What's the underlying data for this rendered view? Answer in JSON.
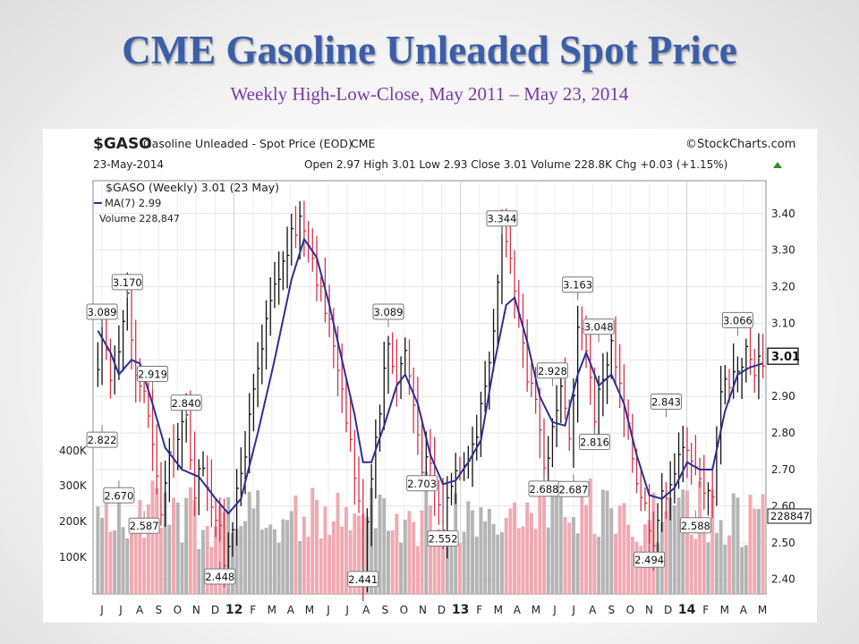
{
  "slide": {
    "title": "CME Gasoline Unleaded Spot Price",
    "subtitle": "Weekly High-Low-Close, May 2011 – May 23, 2014"
  },
  "chart_header": {
    "symbol": "$GASO",
    "name": "Gasoline Unleaded - Spot Price (EOD)",
    "exchange": "CME",
    "brand": "©StockCharts.com",
    "date": "23-May-2014",
    "quote": "Open 2.97  High 3.01  Low 2.93  Close 3.01  Volume 228.8K  Chg +0.03 (+1.15%)",
    "legend_price": "$GASO (Weekly) 3.01 (23 May)",
    "legend_ma": "MA(7) 2.99",
    "legend_volume": "Volume 228,847"
  },
  "chart_data": {
    "type": "line",
    "title": "$GASO Gasoline Unleaded - Spot Price (EOD)",
    "price_axis": {
      "ticks": [
        "3.40",
        "3.30",
        "3.20",
        "3.10",
        "3.00",
        "2.90",
        "2.80",
        "2.70",
        "2.60",
        "2.50",
        "2.40"
      ],
      "range": [
        2.36,
        3.49
      ],
      "last": "3.01"
    },
    "volume_axis": {
      "ticks": [
        "400K",
        "300K",
        "200K",
        "100K"
      ],
      "last": "228847"
    },
    "x_labels": [
      "J",
      "J",
      "A",
      "S",
      "O",
      "N",
      "D",
      "12",
      "F",
      "M",
      "A",
      "M",
      "J",
      "J",
      "A",
      "S",
      "O",
      "N",
      "D",
      "13",
      "F",
      "M",
      "A",
      "M",
      "J",
      "J",
      "A",
      "S",
      "O",
      "N",
      "D",
      "14",
      "F",
      "M",
      "A",
      "M"
    ],
    "price_keypoints": [
      {
        "t": 0,
        "v": 2.95
      },
      {
        "t": 1,
        "v": 3.09
      },
      {
        "t": 3,
        "v": 2.95
      },
      {
        "t": 5,
        "v": 3.05
      },
      {
        "t": 7,
        "v": 3.17
      },
      {
        "t": 9,
        "v": 2.95
      },
      {
        "t": 11,
        "v": 2.92
      },
      {
        "t": 13,
        "v": 2.75
      },
      {
        "t": 15,
        "v": 2.59
      },
      {
        "t": 17,
        "v": 2.72
      },
      {
        "t": 21,
        "v": 2.84
      },
      {
        "t": 23,
        "v": 2.65
      },
      {
        "t": 25,
        "v": 2.72
      },
      {
        "t": 29,
        "v": 2.52
      },
      {
        "t": 30,
        "v": 2.45
      },
      {
        "t": 33,
        "v": 2.62
      },
      {
        "t": 37,
        "v": 2.9
      },
      {
        "t": 41,
        "v": 3.15
      },
      {
        "t": 45,
        "v": 3.3
      },
      {
        "t": 48,
        "v": 3.39
      },
      {
        "t": 50,
        "v": 3.34
      },
      {
        "t": 53,
        "v": 3.18
      },
      {
        "t": 56,
        "v": 3.05
      },
      {
        "t": 58,
        "v": 2.93
      },
      {
        "t": 60,
        "v": 2.78
      },
      {
        "t": 62,
        "v": 2.6
      },
      {
        "t": 63,
        "v": 2.44
      },
      {
        "t": 65,
        "v": 2.7
      },
      {
        "t": 67,
        "v": 2.88
      },
      {
        "t": 69,
        "v": 3.05
      },
      {
        "t": 71,
        "v": 2.95
      },
      {
        "t": 73,
        "v": 3.03
      },
      {
        "t": 75,
        "v": 2.88
      },
      {
        "t": 77,
        "v": 2.72
      },
      {
        "t": 79,
        "v": 2.7
      },
      {
        "t": 81,
        "v": 2.6
      },
      {
        "t": 82,
        "v": 2.55
      },
      {
        "t": 84,
        "v": 2.68
      },
      {
        "t": 86,
        "v": 2.72
      },
      {
        "t": 88,
        "v": 2.75
      },
      {
        "t": 90,
        "v": 2.8
      },
      {
        "t": 93,
        "v": 3.0
      },
      {
        "t": 95,
        "v": 3.2
      },
      {
        "t": 96,
        "v": 3.34
      },
      {
        "t": 98,
        "v": 3.25
      },
      {
        "t": 100,
        "v": 3.1
      },
      {
        "t": 102,
        "v": 2.95
      },
      {
        "t": 104,
        "v": 2.92
      },
      {
        "t": 106,
        "v": 2.7
      },
      {
        "t": 108,
        "v": 2.8
      },
      {
        "t": 110,
        "v": 2.9
      },
      {
        "t": 112,
        "v": 2.78
      },
      {
        "t": 114,
        "v": 3.08
      },
      {
        "t": 116,
        "v": 3.05
      },
      {
        "t": 118,
        "v": 2.85
      },
      {
        "t": 120,
        "v": 2.96
      },
      {
        "t": 122,
        "v": 3.04
      },
      {
        "t": 124,
        "v": 2.92
      },
      {
        "t": 126,
        "v": 2.8
      },
      {
        "t": 128,
        "v": 2.68
      },
      {
        "t": 130,
        "v": 2.6
      },
      {
        "t": 132,
        "v": 2.52
      },
      {
        "t": 134,
        "v": 2.62
      },
      {
        "t": 136,
        "v": 2.68
      },
      {
        "t": 138,
        "v": 2.72
      },
      {
        "t": 140,
        "v": 2.78
      },
      {
        "t": 142,
        "v": 2.7
      },
      {
        "t": 144,
        "v": 2.62
      },
      {
        "t": 146,
        "v": 2.65
      },
      {
        "t": 148,
        "v": 2.92
      },
      {
        "t": 150,
        "v": 2.95
      },
      {
        "t": 152,
        "v": 2.98
      },
      {
        "t": 154,
        "v": 3.02
      },
      {
        "t": 156,
        "v": 2.98
      },
      {
        "t": 158,
        "v": 3.01
      }
    ],
    "ma_keypoints": [
      {
        "t": 0,
        "v": 3.08
      },
      {
        "t": 3,
        "v": 3.02
      },
      {
        "t": 5,
        "v": 2.96
      },
      {
        "t": 8,
        "v": 3.0
      },
      {
        "t": 10,
        "v": 2.99
      },
      {
        "t": 13,
        "v": 2.88
      },
      {
        "t": 16,
        "v": 2.76
      },
      {
        "t": 20,
        "v": 2.7
      },
      {
        "t": 24,
        "v": 2.68
      },
      {
        "t": 28,
        "v": 2.62
      },
      {
        "t": 31,
        "v": 2.58
      },
      {
        "t": 34,
        "v": 2.62
      },
      {
        "t": 38,
        "v": 2.8
      },
      {
        "t": 42,
        "v": 3.0
      },
      {
        "t": 46,
        "v": 3.22
      },
      {
        "t": 49,
        "v": 3.33
      },
      {
        "t": 52,
        "v": 3.28
      },
      {
        "t": 55,
        "v": 3.15
      },
      {
        "t": 58,
        "v": 3.0
      },
      {
        "t": 61,
        "v": 2.85
      },
      {
        "t": 63,
        "v": 2.72
      },
      {
        "t": 65,
        "v": 2.72
      },
      {
        "t": 68,
        "v": 2.82
      },
      {
        "t": 71,
        "v": 2.93
      },
      {
        "t": 73,
        "v": 2.96
      },
      {
        "t": 76,
        "v": 2.88
      },
      {
        "t": 79,
        "v": 2.74
      },
      {
        "t": 82,
        "v": 2.66
      },
      {
        "t": 85,
        "v": 2.67
      },
      {
        "t": 88,
        "v": 2.72
      },
      {
        "t": 91,
        "v": 2.78
      },
      {
        "t": 94,
        "v": 2.98
      },
      {
        "t": 97,
        "v": 3.15
      },
      {
        "t": 99,
        "v": 3.17
      },
      {
        "t": 102,
        "v": 3.05
      },
      {
        "t": 105,
        "v": 2.9
      },
      {
        "t": 108,
        "v": 2.83
      },
      {
        "t": 111,
        "v": 2.82
      },
      {
        "t": 114,
        "v": 2.96
      },
      {
        "t": 116,
        "v": 3.02
      },
      {
        "t": 119,
        "v": 2.93
      },
      {
        "t": 122,
        "v": 2.96
      },
      {
        "t": 125,
        "v": 2.88
      },
      {
        "t": 128,
        "v": 2.74
      },
      {
        "t": 131,
        "v": 2.63
      },
      {
        "t": 134,
        "v": 2.62
      },
      {
        "t": 137,
        "v": 2.65
      },
      {
        "t": 140,
        "v": 2.72
      },
      {
        "t": 143,
        "v": 2.7
      },
      {
        "t": 146,
        "v": 2.7
      },
      {
        "t": 149,
        "v": 2.86
      },
      {
        "t": 152,
        "v": 2.96
      },
      {
        "t": 155,
        "v": 2.98
      },
      {
        "t": 158,
        "v": 2.99
      }
    ],
    "annotations": [
      {
        "t": 1,
        "v": 3.089,
        "label": "3.089",
        "pos": "above"
      },
      {
        "t": 1,
        "v": 2.822,
        "label": "2.822",
        "pos": "below"
      },
      {
        "t": 7,
        "v": 3.17,
        "label": "3.170",
        "pos": "above"
      },
      {
        "t": 5,
        "v": 2.67,
        "label": "2.670",
        "pos": "below"
      },
      {
        "t": 13,
        "v": 2.919,
        "label": "2.919",
        "pos": "above"
      },
      {
        "t": 11,
        "v": 2.587,
        "label": "2.587",
        "pos": "below"
      },
      {
        "t": 21,
        "v": 2.84,
        "label": "2.840",
        "pos": "above"
      },
      {
        "t": 29,
        "v": 2.448,
        "label": "2.448",
        "pos": "below"
      },
      {
        "t": 63,
        "v": 2.441,
        "label": "2.441",
        "pos": "below"
      },
      {
        "t": 69,
        "v": 3.089,
        "label": "3.089",
        "pos": "above"
      },
      {
        "t": 77,
        "v": 2.703,
        "label": "2.703",
        "pos": "below"
      },
      {
        "t": 82,
        "v": 2.552,
        "label": "2.552",
        "pos": "below"
      },
      {
        "t": 96,
        "v": 3.344,
        "label": "3.344",
        "pos": "above"
      },
      {
        "t": 106,
        "v": 2.688,
        "label": "2.688",
        "pos": "below"
      },
      {
        "t": 108,
        "v": 2.928,
        "label": "2.928",
        "pos": "above"
      },
      {
        "t": 113,
        "v": 2.687,
        "label": "2.687",
        "pos": "below"
      },
      {
        "t": 114,
        "v": 3.163,
        "label": "3.163",
        "pos": "above"
      },
      {
        "t": 119,
        "v": 3.048,
        "label": "3.048",
        "pos": "above"
      },
      {
        "t": 118,
        "v": 2.816,
        "label": "2.816",
        "pos": "below"
      },
      {
        "t": 135,
        "v": 2.843,
        "label": "2.843",
        "pos": "above"
      },
      {
        "t": 131,
        "v": 2.494,
        "label": "2.494",
        "pos": "below"
      },
      {
        "t": 142,
        "v": 2.588,
        "label": "2.588",
        "pos": "below"
      },
      {
        "t": 152,
        "v": 3.066,
        "label": "3.066",
        "pos": "above"
      }
    ]
  }
}
